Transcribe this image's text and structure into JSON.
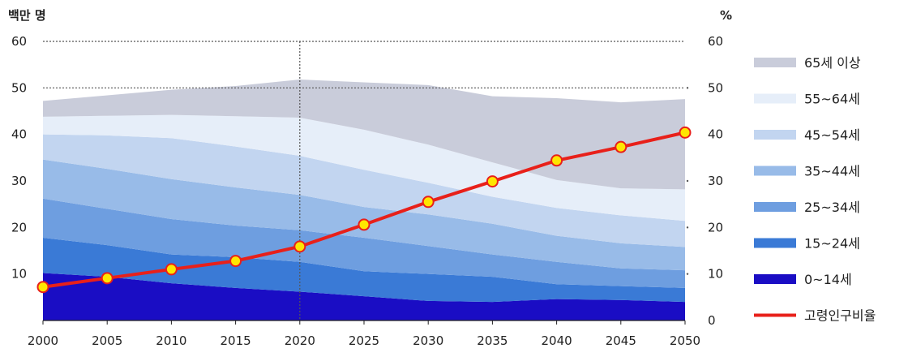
{
  "chart_data": {
    "type": "area",
    "left_unit": "백만 명",
    "right_unit": "%",
    "x": [
      2000,
      2005,
      2010,
      2015,
      2020,
      2025,
      2030,
      2035,
      2040,
      2045,
      2050
    ],
    "y_left_range": [
      0,
      60
    ],
    "y_right_range": [
      0,
      60
    ],
    "y_left_ticks": [
      "10",
      "20",
      "30",
      "40",
      "50",
      "60"
    ],
    "y_right_ticks": [
      "0",
      "10",
      "20",
      "30",
      "40",
      "50",
      "60"
    ],
    "gridlines": [
      50,
      60
    ],
    "reference_line_x": 2020,
    "stacked_series": [
      {
        "name": "0~14세",
        "color": "#1a0dc4",
        "values": [
          10.2,
          9.4,
          8.0,
          7.0,
          6.2,
          5.2,
          4.2,
          4.0,
          4.6,
          4.4,
          4.0
        ]
      },
      {
        "name": "15~24세",
        "color": "#3a7ad6",
        "values": [
          7.6,
          6.8,
          6.2,
          6.6,
          6.4,
          5.4,
          5.8,
          5.4,
          3.2,
          3.0,
          3.0
        ]
      },
      {
        "name": "25~34세",
        "color": "#6e9ee0",
        "values": [
          8.4,
          7.8,
          7.6,
          6.8,
          6.8,
          7.2,
          6.0,
          4.8,
          4.8,
          3.8,
          3.8
        ]
      },
      {
        "name": "35~44세",
        "color": "#98bbe8",
        "values": [
          8.4,
          8.6,
          8.6,
          8.2,
          7.6,
          6.6,
          6.8,
          6.6,
          5.6,
          5.4,
          5.0
        ]
      },
      {
        "name": "45~54세",
        "color": "#c2d5f0",
        "values": [
          5.4,
          7.2,
          8.8,
          8.8,
          8.4,
          8.0,
          6.8,
          5.8,
          6.0,
          6.0,
          5.6
        ]
      },
      {
        "name": "55~64세",
        "color": "#e6eef9",
        "values": [
          3.8,
          4.2,
          5.0,
          6.5,
          8.2,
          8.6,
          8.2,
          7.4,
          6.0,
          5.8,
          6.8
        ]
      },
      {
        "name": "65세 이상",
        "color": "#c9ccda",
        "values": [
          3.4,
          4.4,
          5.4,
          6.5,
          8.2,
          10.2,
          12.8,
          14.2,
          17.6,
          18.5,
          19.4
        ]
      }
    ],
    "line_series": {
      "name": "고령인구비율",
      "color": "#e8201a",
      "marker_fill": "#ffe600",
      "axis": "right",
      "values": [
        7.2,
        9.1,
        11.0,
        12.8,
        15.9,
        20.6,
        25.5,
        29.9,
        34.4,
        37.3,
        40.4
      ]
    },
    "legend_placement": "right"
  }
}
